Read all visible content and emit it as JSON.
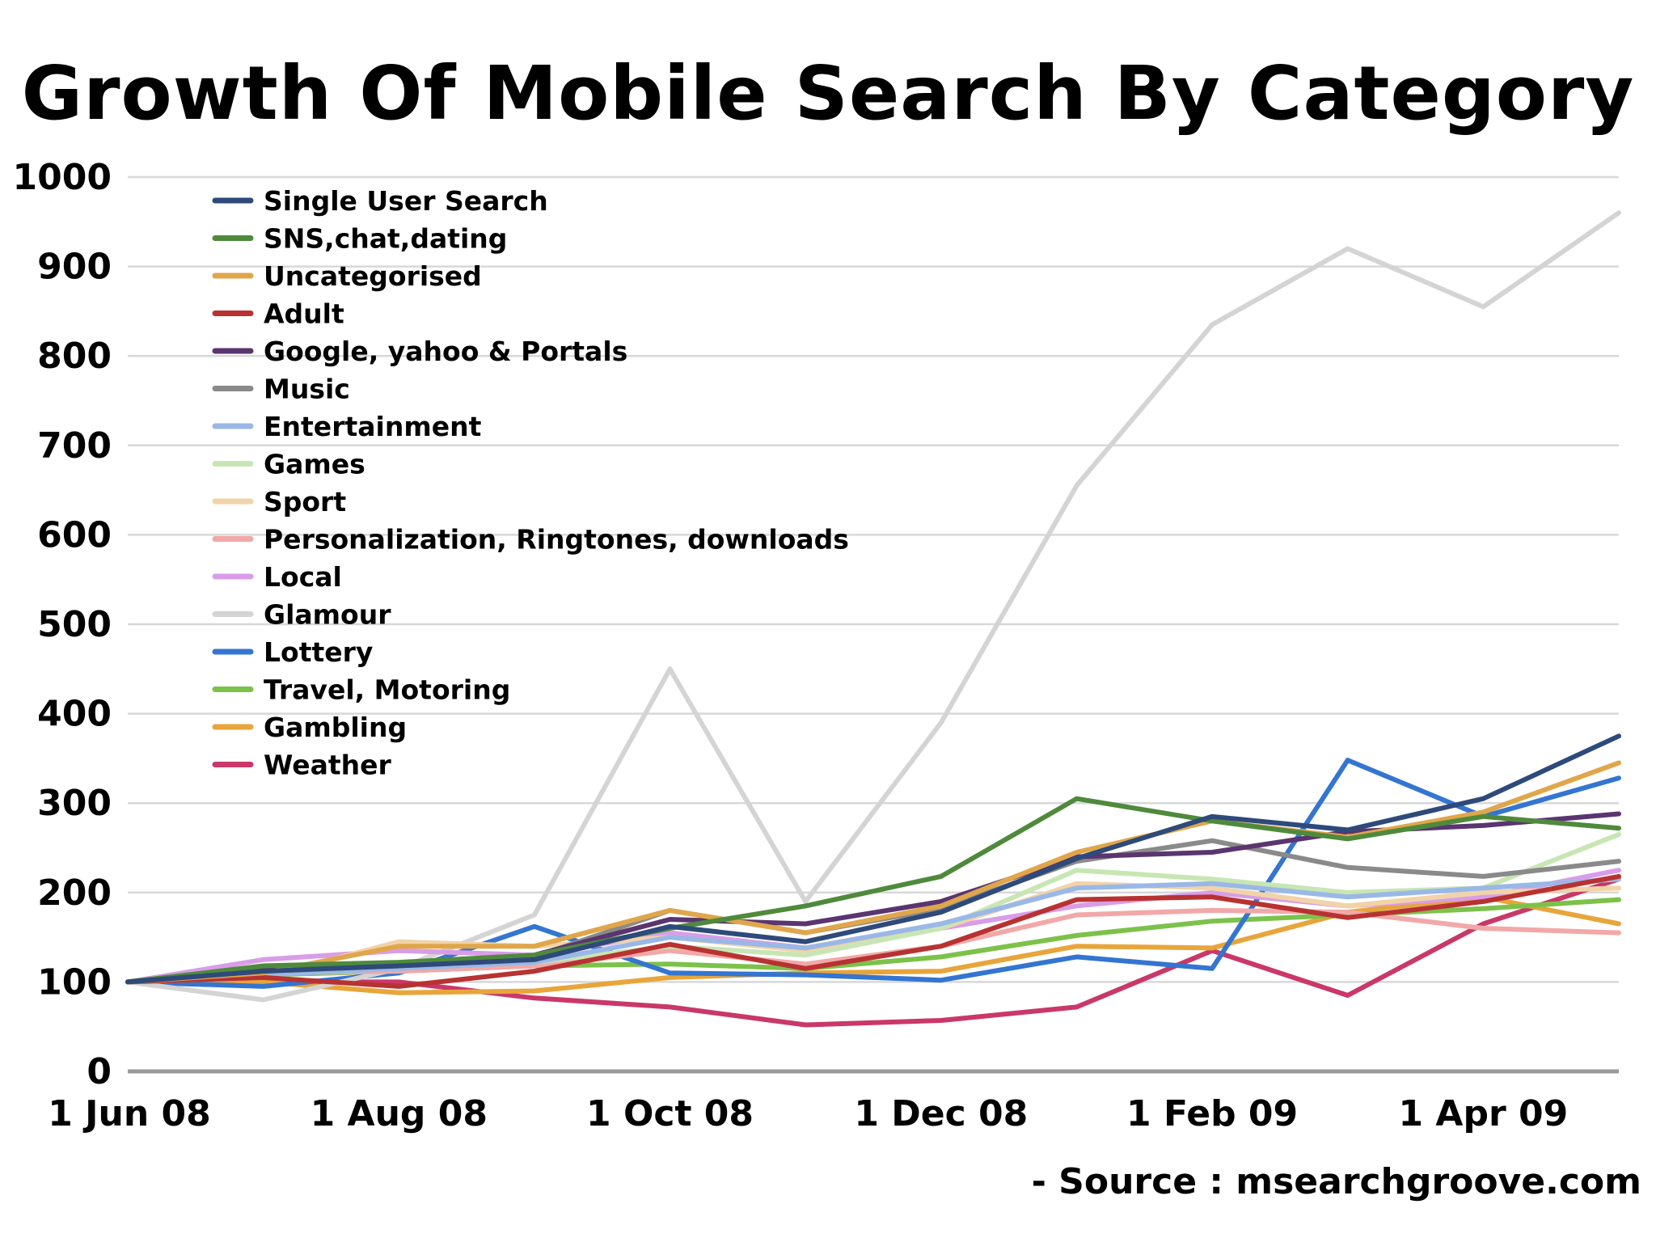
{
  "chart_data": {
    "type": "line",
    "title": "Growth Of Mobile Search By Category",
    "source": "- Source : msearchgroove.com",
    "ylim": [
      0,
      1000
    ],
    "yticks": [
      "0",
      "100",
      "200",
      "300",
      "400",
      "500",
      "600",
      "700",
      "800",
      "900",
      "1000"
    ],
    "xlim": [
      "1 Jun 08",
      "1 May 09"
    ],
    "x": [
      "1 Jun 08",
      "1 Jul 08",
      "1 Aug 08",
      "1 Sep 08",
      "1 Oct 08",
      "1 Nov 08",
      "1 Dec 08",
      "1 Jan 09",
      "1 Feb 09",
      "1 Mar 09",
      "1 Apr 09",
      "1 May 09"
    ],
    "xtick_labels": [
      "1 Jun 08",
      "1 Aug 08",
      "1 Oct 08",
      "1 Dec 08",
      "1 Feb 09",
      "1 Apr 09"
    ],
    "grid": true,
    "legend_position": "top-left",
    "series": [
      {
        "name": "Single User Search",
        "color": "#2e4a7a",
        "values": [
          100,
          112,
          118,
          125,
          162,
          145,
          178,
          238,
          285,
          270,
          305,
          375
        ]
      },
      {
        "name": "SNS,chat,dating",
        "color": "#4f8a3c",
        "values": [
          100,
          118,
          122,
          130,
          160,
          185,
          218,
          305,
          280,
          260,
          285,
          272
        ]
      },
      {
        "name": "Uncategorised",
        "color": "#e0a64a",
        "values": [
          100,
          110,
          140,
          140,
          180,
          155,
          185,
          245,
          280,
          262,
          290,
          345
        ]
      },
      {
        "name": "Adult",
        "color": "#b83232",
        "values": [
          100,
          105,
          95,
          112,
          142,
          115,
          140,
          192,
          195,
          172,
          190,
          218
        ]
      },
      {
        "name": "Google, yahoo & Portals",
        "color": "#5a3570",
        "values": [
          100,
          115,
          120,
          130,
          170,
          165,
          190,
          240,
          245,
          268,
          275,
          288
        ]
      },
      {
        "name": "Music",
        "color": "#8a8a8a",
        "values": [
          100,
          112,
          118,
          128,
          180,
          155,
          182,
          235,
          258,
          228,
          218,
          235
        ]
      },
      {
        "name": "Entertainment",
        "color": "#9ab8e6",
        "values": [
          100,
          108,
          115,
          122,
          150,
          138,
          165,
          205,
          210,
          195,
          205,
          215
        ]
      },
      {
        "name": "Games",
        "color": "#c8e6b4",
        "values": [
          100,
          110,
          118,
          122,
          140,
          130,
          160,
          225,
          215,
          200,
          205,
          265
        ]
      },
      {
        "name": "Sport",
        "color": "#f2d3a8",
        "values": [
          100,
          105,
          145,
          140,
          150,
          135,
          160,
          210,
          205,
          185,
          200,
          205
        ]
      },
      {
        "name": "Personalization, Ringtones, downloads",
        "color": "#f2a8a8",
        "values": [
          100,
          110,
          112,
          118,
          135,
          120,
          140,
          175,
          180,
          178,
          160,
          155
        ]
      },
      {
        "name": "Local",
        "color": "#d99de8",
        "values": [
          100,
          125,
          135,
          130,
          155,
          138,
          160,
          185,
          200,
          185,
          195,
          225
        ]
      },
      {
        "name": "Glamour",
        "color": "#d4d4d4",
        "values": [
          100,
          80,
          115,
          175,
          450,
          190,
          390,
          655,
          835,
          920,
          855,
          960
        ]
      },
      {
        "name": "Lottery",
        "color": "#3375d1",
        "values": [
          100,
          95,
          110,
          162,
          110,
          108,
          102,
          128,
          115,
          348,
          285,
          328
        ]
      },
      {
        "name": "Travel, Motoring",
        "color": "#7cc24a",
        "values": [
          100,
          108,
          112,
          118,
          120,
          115,
          128,
          152,
          168,
          175,
          182,
          192
        ]
      },
      {
        "name": "Gambling",
        "color": "#e8a53a",
        "values": [
          100,
          100,
          88,
          90,
          105,
          110,
          112,
          140,
          138,
          178,
          195,
          165
        ]
      },
      {
        "name": "Weather",
        "color": "#c93868",
        "values": [
          100,
          100,
          100,
          82,
          72,
          52,
          57,
          72,
          135,
          85,
          165,
          215
        ]
      }
    ]
  }
}
